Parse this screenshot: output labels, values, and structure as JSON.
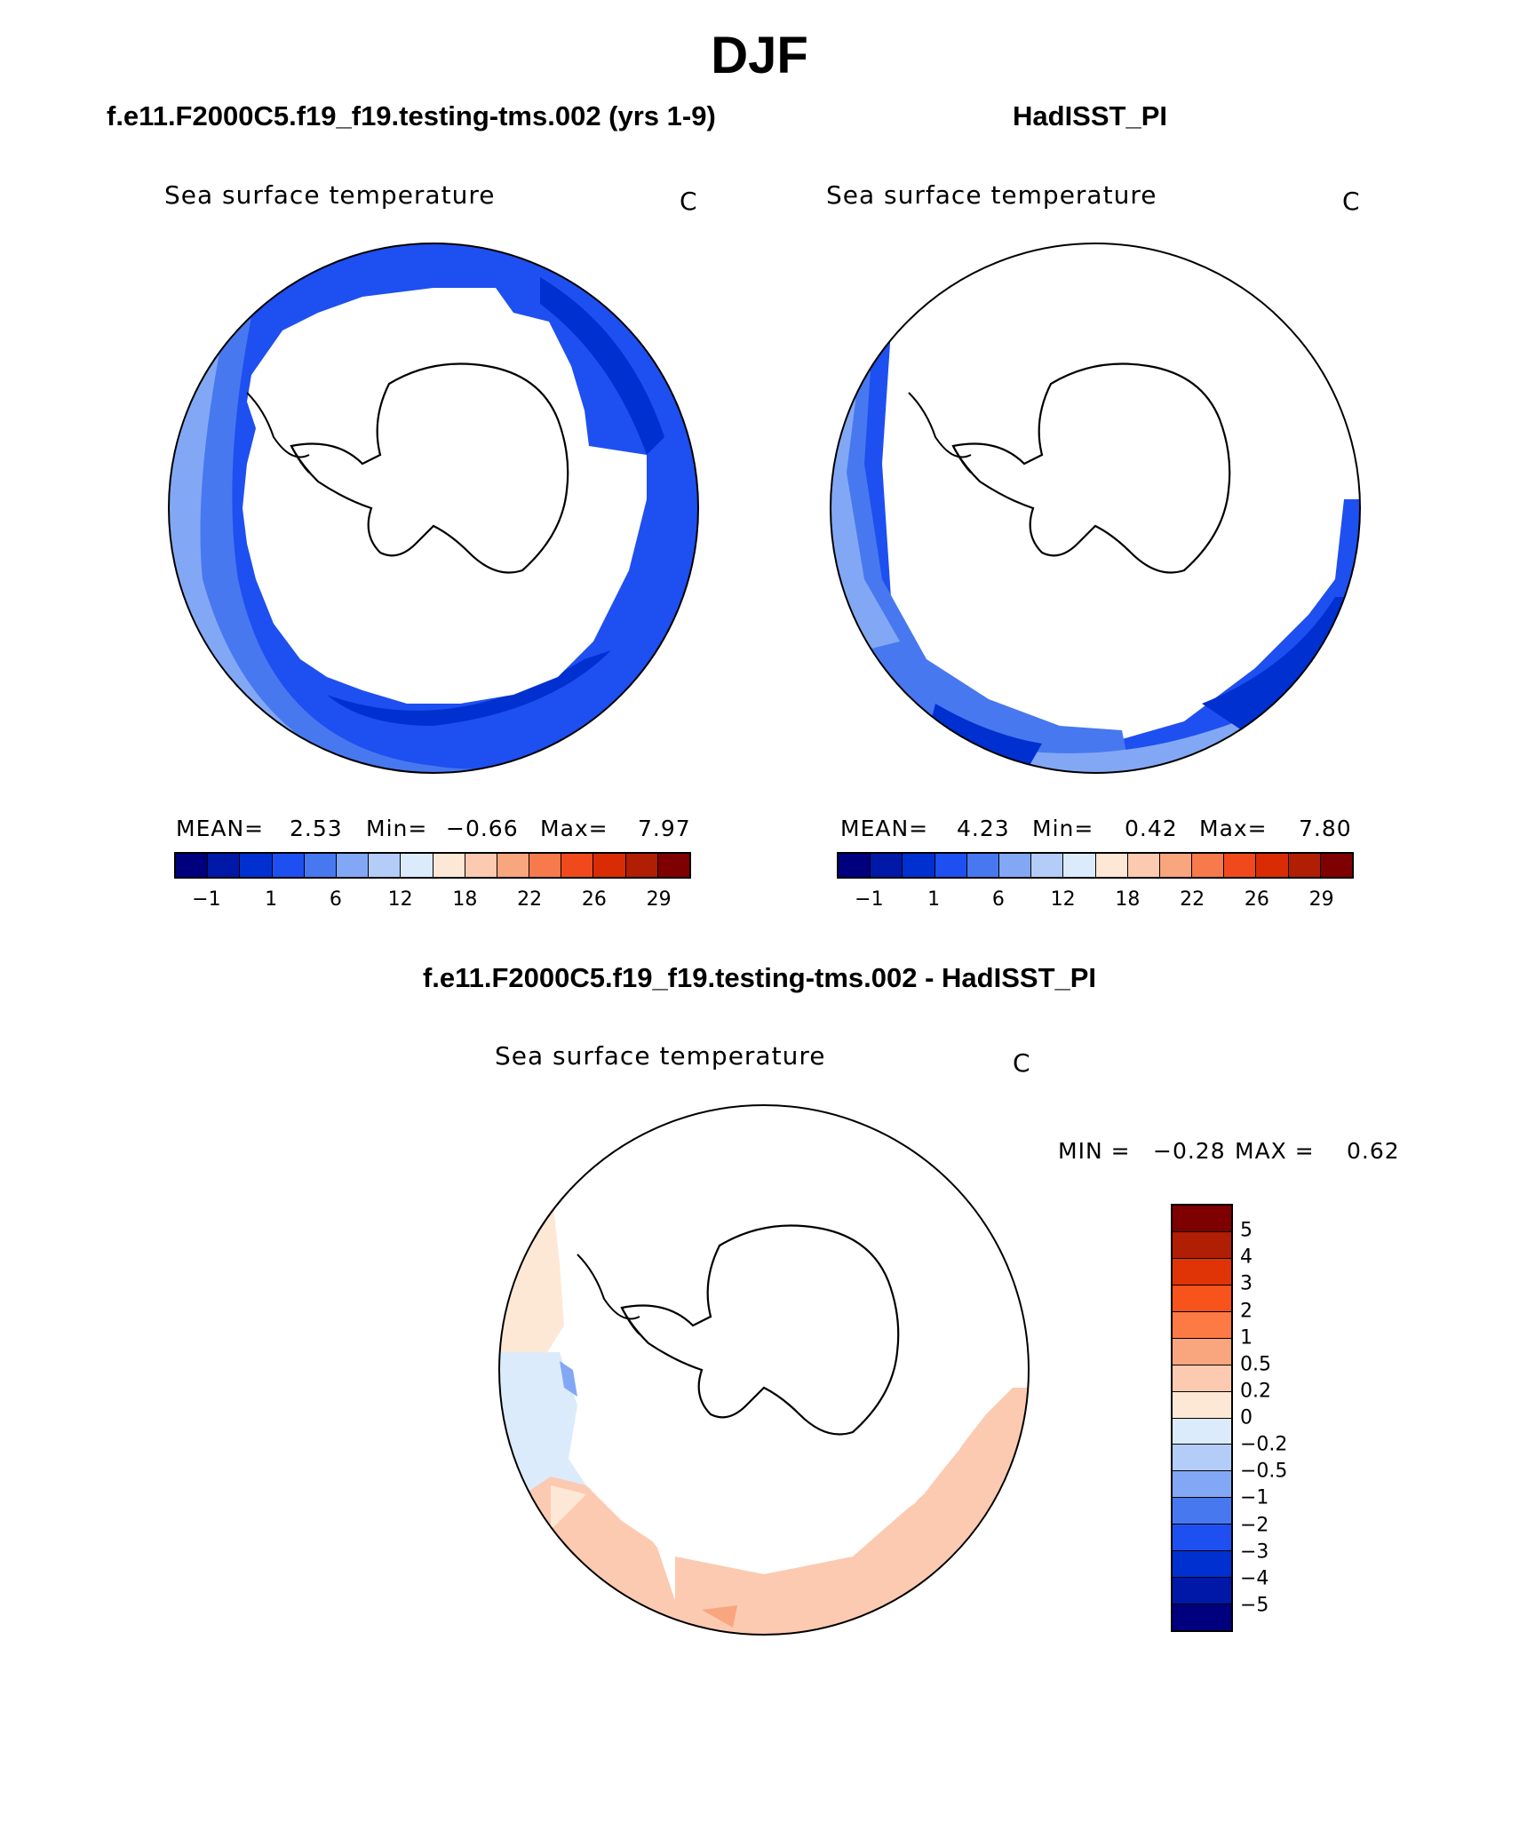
{
  "season": "DJF",
  "panels": [
    {
      "title": "f.e11.F2000C5.f19_f19.testing-tms.002 (yrs 1-9)",
      "variable": "Sea surface temperature",
      "units": "C",
      "stats": {
        "mean_label": "MEAN=",
        "mean": "2.53",
        "min_label": "Min=",
        "min": "−0.66",
        "max_label": "Max=",
        "max": "7.97"
      }
    },
    {
      "title": "HadISST_PI",
      "variable": "Sea surface temperature",
      "units": "C",
      "stats": {
        "mean_label": "MEAN=",
        "mean": "4.23",
        "min_label": "Min=",
        "min": "0.42",
        "max_label": "Max=",
        "max": "7.80"
      }
    },
    {
      "title": "f.e11.F2000C5.f19_f19.testing-tms.002 - HadISST_PI",
      "variable": "Sea surface temperature",
      "units": "C",
      "stats": {
        "min_label": "MIN =",
        "min": "−0.28",
        "max_label": "MAX =",
        "max": "0.62"
      }
    }
  ],
  "colorbar_abs": {
    "colors": [
      "#00007f",
      "#0018a8",
      "#0030d0",
      "#1e4ff0",
      "#4878f0",
      "#82a8f5",
      "#b4cdf8",
      "#dcebfb",
      "#fde8d6",
      "#fccab0",
      "#f9a57e",
      "#f67a4c",
      "#f04a1c",
      "#d92c04",
      "#b01e04",
      "#7f0000"
    ],
    "ticks": [
      "−1",
      "1",
      "6",
      "12",
      "18",
      "22",
      "26",
      "29"
    ]
  },
  "colorbar_diff": {
    "colors": [
      "#7f0000",
      "#b01e04",
      "#e03406",
      "#f9531c",
      "#fd7a45",
      "#f9a57e",
      "#fccab0",
      "#fde8d6",
      "#dcebfb",
      "#b4cdf8",
      "#82a8f5",
      "#4878f0",
      "#1e4ff0",
      "#0030d0",
      "#0018a8",
      "#00007f"
    ],
    "ticks": [
      "5",
      "4",
      "3",
      "2",
      "1",
      "0.5",
      "0.2",
      "0",
      "−0.2",
      "−0.5",
      "−1",
      "−2",
      "−3",
      "−4",
      "−5"
    ]
  }
}
